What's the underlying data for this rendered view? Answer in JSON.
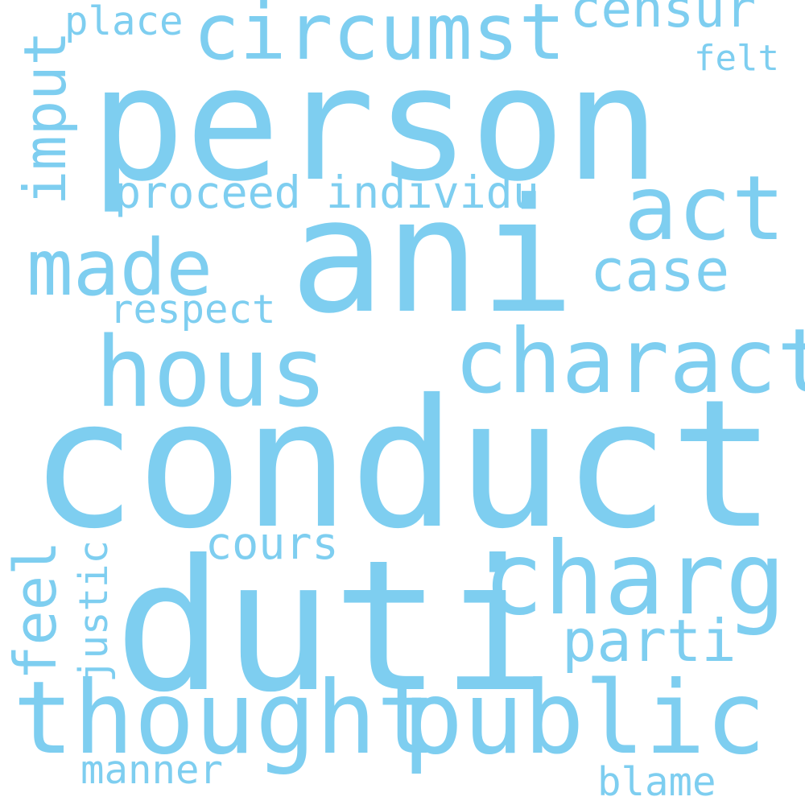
{
  "colors": {
    "background": "#ffffff",
    "word": "#7ecef0"
  },
  "words": {
    "conduct": "conduct",
    "person": "person",
    "ani": "ani",
    "duti": "duti",
    "thought": "thought",
    "public": "public",
    "charg": "charg",
    "hous": "hous",
    "charact": "charact",
    "act": "act",
    "circumst": "circumst",
    "made": "made",
    "censur": "censur",
    "place": "place",
    "felt": "felt",
    "imput": "imput",
    "proceed": "proceed",
    "individu": "individu",
    "case": "case",
    "respect": "respect",
    "cours": "cours",
    "parti": "parti",
    "feel": "feel",
    "justic": "justic",
    "manner": "manner",
    "blame": "blame"
  }
}
